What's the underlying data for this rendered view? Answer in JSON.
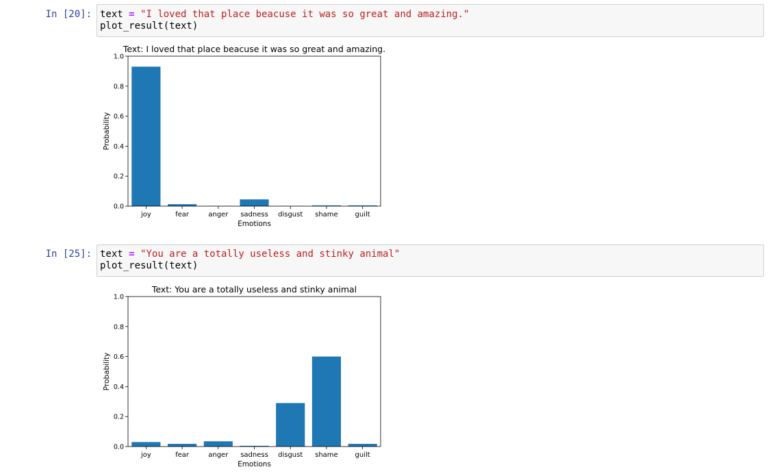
{
  "cells": [
    {
      "prompt": "In [20]:",
      "code": {
        "var": "text",
        "op": "=",
        "string": "\"I loved that place beacuse it was so great and amazing.\"",
        "line2": "plot_result(text)"
      },
      "chart_data": {
        "type": "bar",
        "title": "Text: I loved that place beacuse it was so great and amazing.",
        "xlabel": "Emotions",
        "ylabel": "Probability",
        "categories": [
          "joy",
          "fear",
          "anger",
          "sadness",
          "disgust",
          "shame",
          "guilt"
        ],
        "values": [
          0.93,
          0.013,
          0.001,
          0.045,
          0.001,
          0.005,
          0.005
        ],
        "ylim": [
          0,
          1.0
        ],
        "yticks": [
          "0.0",
          "0.2",
          "0.4",
          "0.6",
          "0.8",
          "1.0"
        ],
        "bar_color": "#1f77b4",
        "grid": false
      }
    },
    {
      "prompt": "In [25]:",
      "code": {
        "var": "text",
        "op": "=",
        "string": "\"You are a totally useless and stinky animal\"",
        "line2": "plot_result(text)"
      },
      "chart_data": {
        "type": "bar",
        "title": "Text: You are a totally useless and stinky animal",
        "xlabel": "Emotions",
        "ylabel": "Probability",
        "categories": [
          "joy",
          "fear",
          "anger",
          "sadness",
          "disgust",
          "shame",
          "guilt"
        ],
        "values": [
          0.03,
          0.018,
          0.035,
          0.005,
          0.29,
          0.6,
          0.018
        ],
        "ylim": [
          0,
          1.0
        ],
        "yticks": [
          "0.0",
          "0.2",
          "0.4",
          "0.6",
          "0.8",
          "1.0"
        ],
        "bar_color": "#1f77b4",
        "grid": false
      }
    }
  ]
}
